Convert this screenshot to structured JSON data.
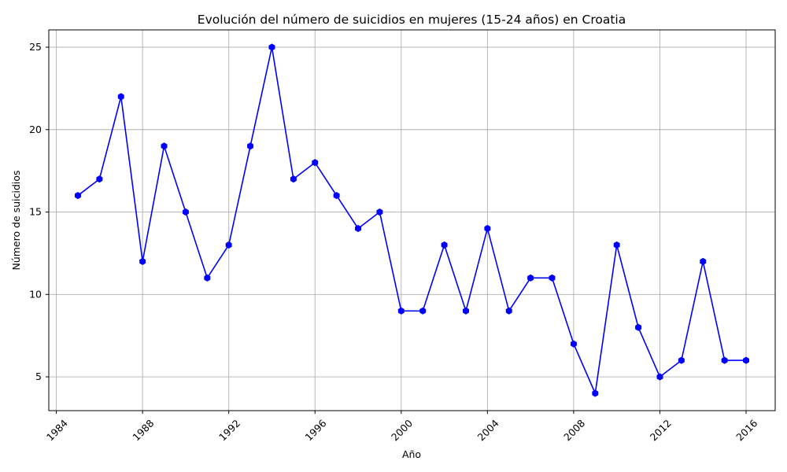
{
  "chart_data": {
    "type": "line",
    "title": "Evolución del número de suicidios en mujeres (15-24 años) en Croatia",
    "xlabel": "Año",
    "ylabel": "Número de suicidios",
    "x": [
      1985,
      1986,
      1987,
      1988,
      1989,
      1990,
      1991,
      1992,
      1993,
      1994,
      1995,
      1996,
      1997,
      1998,
      1999,
      2000,
      2001,
      2002,
      2003,
      2004,
      2005,
      2006,
      2007,
      2008,
      2009,
      2010,
      2011,
      2012,
      2013,
      2014,
      2015,
      2016
    ],
    "y": [
      16,
      17,
      22,
      12,
      19,
      15,
      11,
      13,
      19,
      25,
      17,
      18,
      16,
      14,
      15,
      9,
      9,
      13,
      9,
      14,
      9,
      11,
      11,
      7,
      4,
      13,
      8,
      5,
      6,
      12,
      6,
      6
    ],
    "xlim": [
      1983.65,
      2017.35
    ],
    "ylim": [
      2.95,
      26.05
    ],
    "xticks": [
      "1984",
      "1988",
      "1992",
      "1996",
      "2000",
      "2004",
      "2008",
      "2012",
      "2016"
    ],
    "yticks": [
      "5",
      "10",
      "15",
      "20",
      "25"
    ],
    "grid": true,
    "line_color": "#0000ff",
    "marker": "hexagon",
    "marker_color": "#0000ff"
  }
}
